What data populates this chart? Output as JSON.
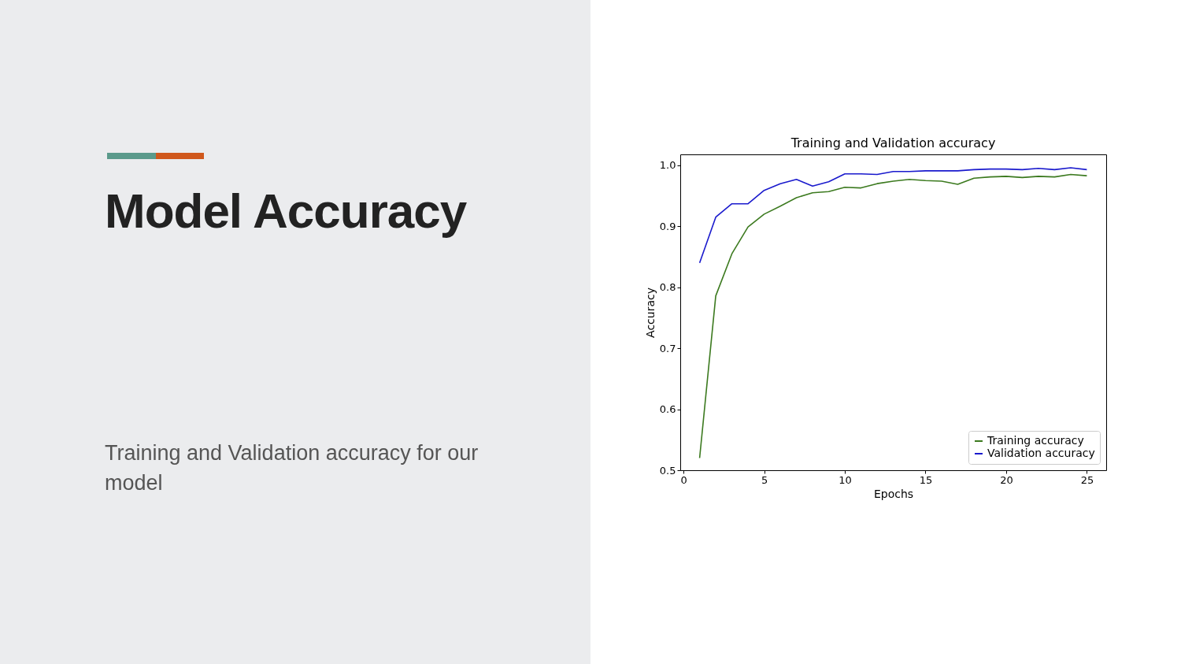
{
  "chart_data": {
    "type": "line",
    "title": "Training and Validation accuracy",
    "xlabel": "Epochs",
    "ylabel": "Accuracy",
    "annotations": [
      "Model Accuracy",
      "Training and Validation accuracy for our model"
    ],
    "x": [
      1,
      2,
      3,
      4,
      5,
      6,
      7,
      8,
      9,
      10,
      11,
      12,
      13,
      14,
      15,
      16,
      17,
      18,
      19,
      20,
      21,
      22,
      23,
      24,
      25
    ],
    "series": [
      {
        "name": "Training accuracy",
        "color": "#3c7a1f",
        "values": [
          0.52,
          0.786,
          0.855,
          0.899,
          0.92,
          0.933,
          0.947,
          0.955,
          0.957,
          0.964,
          0.963,
          0.97,
          0.974,
          0.977,
          0.975,
          0.974,
          0.969,
          0.979,
          0.981,
          0.982,
          0.98,
          0.982,
          0.981,
          0.985,
          0.983
        ]
      },
      {
        "name": "Validation accuracy",
        "color": "#1a1acd",
        "values": [
          0.84,
          0.915,
          0.937,
          0.937,
          0.959,
          0.97,
          0.977,
          0.966,
          0.973,
          0.986,
          0.986,
          0.985,
          0.99,
          0.99,
          0.991,
          0.991,
          0.991,
          0.993,
          0.994,
          0.994,
          0.993,
          0.995,
          0.993,
          0.996,
          0.993
        ]
      }
    ],
    "xlim": [
      -0.2,
      26.2
    ],
    "xticks": [
      0,
      5,
      10,
      15,
      20,
      25
    ],
    "ylim": [
      0.5,
      1.018
    ],
    "yticks": [
      {
        "value": 0.5,
        "label": "0.5"
      },
      {
        "value": 0.6,
        "label": "0.6"
      },
      {
        "value": 0.7,
        "label": "0.7"
      },
      {
        "value": 0.8,
        "label": "0.8"
      },
      {
        "value": 0.9,
        "label": "0.9"
      },
      {
        "value": 1,
        "label": "1.0"
      }
    ],
    "legend": "bottom right",
    "grid": false,
    "marker": "none",
    "line_style": "solid"
  }
}
